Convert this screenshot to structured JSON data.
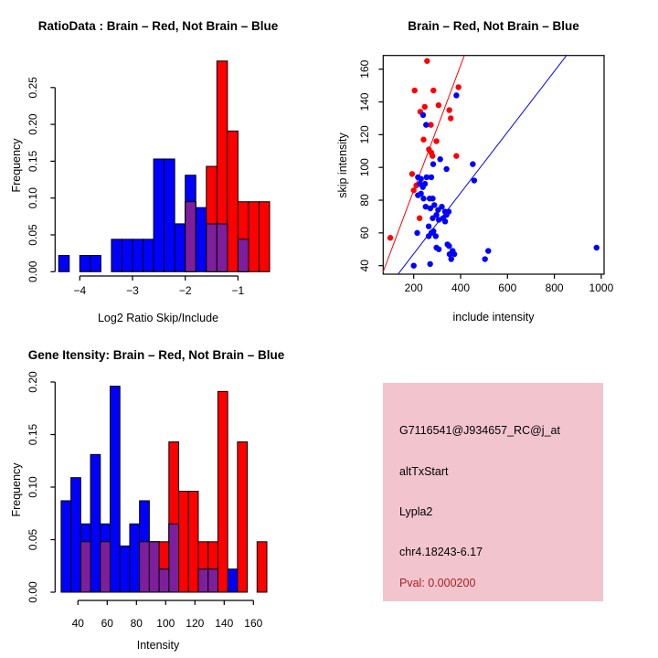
{
  "window": {
    "title": "R Graphics: 2x2 alternative splicing diagnostic plots"
  },
  "colors": {
    "background": "#ffffff",
    "red": "#ff0000",
    "blue": "#0000ff",
    "overlap_purple": "#7d1e9c",
    "axis_black": "#000000",
    "info_panel_pink": "#f2c5ce",
    "pval_red": "#aa2222"
  },
  "panels": {
    "ratio_hist": {
      "title": "RatioData : Brain – Red, Not Brain – Blue",
      "xlabel": "Log2 Ratio Skip/Include",
      "ylabel": "Frequency"
    },
    "scatter": {
      "title": "Brain – Red, Not Brain – Blue",
      "xlabel": "include intensity",
      "ylabel": "skip intensity"
    },
    "gene_hist": {
      "title": "Gene Itensity: Brain – Red, Not Brain – Blue",
      "xlabel": "Intensity",
      "ylabel": "Frequency"
    },
    "info": {
      "lines": [
        {
          "text": "G7116541@J934657_RC@j_at",
          "color": "#000000"
        },
        {
          "text": "altTxStart",
          "color": "#000000"
        },
        {
          "text": "Lypla2",
          "color": "#000000"
        },
        {
          "text": "chr4.18243-6.17",
          "color": "#000000"
        },
        {
          "text": "Pval: 0.000200",
          "color": "#aa2222"
        }
      ]
    }
  },
  "chart_data": [
    {
      "id": "ratio-histogram",
      "type": "bar",
      "title": "RatioData : Brain – Red, Not Brain – Blue",
      "xlabel": "Log2 Ratio Skip/Include",
      "ylabel": "Frequency",
      "bin_start": -4.4,
      "bin_width": 0.2,
      "xlim": [
        -4.45,
        -0.35
      ],
      "ylim": [
        0,
        0.29
      ],
      "xticks": [
        -4,
        -3,
        -2,
        -1
      ],
      "xtick_labels": [
        "−4",
        "−3",
        "−2",
        "−1"
      ],
      "yticks": [
        0,
        0.05,
        0.1,
        0.15,
        0.2,
        0.25
      ],
      "ytick_labels": [
        "0.00",
        "0.05",
        "0.10",
        "0.15",
        "0.20",
        "0.25"
      ],
      "grid": false,
      "series": [
        {
          "name": "Not Brain (blue)",
          "color": "blue",
          "values": [
            0.022,
            0,
            0.022,
            0.022,
            0,
            0.044,
            0.044,
            0.044,
            0.044,
            0.153,
            0.153,
            0.065,
            0.131,
            0.087,
            0.065,
            0.065,
            0,
            0.044,
            0,
            0
          ]
        },
        {
          "name": "Brain (red)",
          "color": "red",
          "values": [
            0,
            0,
            0,
            0,
            0,
            0,
            0,
            0,
            0,
            0,
            0,
            0,
            0.095,
            0,
            0.143,
            0.286,
            0.191,
            0.095,
            0.095,
            0.095
          ]
        }
      ]
    },
    {
      "id": "intensity-scatter",
      "type": "scatter",
      "title": "Brain – Red, Not Brain – Blue",
      "xlabel": "include intensity",
      "ylabel": "skip intensity",
      "xlim": [
        70,
        1012
      ],
      "ylim": [
        35,
        168
      ],
      "xticks": [
        200,
        400,
        600,
        800,
        1000
      ],
      "xtick_labels": [
        "200",
        "400",
        "600",
        "800",
        "1000"
      ],
      "yticks": [
        40,
        60,
        80,
        100,
        120,
        140,
        160
      ],
      "ytick_labels": [
        "40",
        "60",
        "80",
        "100",
        "120",
        "140",
        "160"
      ],
      "grid": false,
      "series": [
        {
          "name": "Brain (red)",
          "color": "red",
          "points": [
            [
              257,
              165
            ],
            [
              204,
              147
            ],
            [
              284,
              147
            ],
            [
              391,
              149
            ],
            [
              247,
              137
            ],
            [
              306,
              138
            ],
            [
              228,
              134
            ],
            [
              352,
              135
            ],
            [
              358,
              130
            ],
            [
              273,
              126
            ],
            [
              242,
              117
            ],
            [
              297,
              116
            ],
            [
              265,
              111
            ],
            [
              275,
              109
            ],
            [
              280,
              107
            ],
            [
              382,
              107
            ],
            [
              193,
              96
            ],
            [
              211,
              89
            ],
            [
              200,
              86
            ],
            [
              225,
              69
            ],
            [
              100,
              57
            ]
          ]
        },
        {
          "name": "Not Brain (blue)",
          "color": "blue",
          "points": [
            [
              382,
              144
            ],
            [
              240,
              132
            ],
            [
              253,
              126
            ],
            [
              313,
              105
            ],
            [
              283,
              102
            ],
            [
              340,
              99
            ],
            [
              452,
              102
            ],
            [
              458,
              92
            ],
            [
              218,
              94
            ],
            [
              231,
              93
            ],
            [
              255,
              94
            ],
            [
              275,
              94
            ],
            [
              226,
              90
            ],
            [
              239,
              88
            ],
            [
              248,
              90
            ],
            [
              231,
              84
            ],
            [
              218,
              83
            ],
            [
              242,
              81
            ],
            [
              268,
              81
            ],
            [
              281,
              81
            ],
            [
              251,
              76
            ],
            [
              271,
              75
            ],
            [
              288,
              77
            ],
            [
              304,
              74
            ],
            [
              320,
              76
            ],
            [
              334,
              73
            ],
            [
              349,
              73
            ],
            [
              340,
              71
            ],
            [
              281,
              69
            ],
            [
              297,
              71
            ],
            [
              307,
              68
            ],
            [
              325,
              69
            ],
            [
              334,
              67
            ],
            [
              264,
              64
            ],
            [
              215,
              60
            ],
            [
              275,
              60
            ],
            [
              284,
              61
            ],
            [
              294,
              58
            ],
            [
              264,
              58
            ],
            [
              297,
              51
            ],
            [
              307,
              50
            ],
            [
              344,
              53
            ],
            [
              351,
              52
            ],
            [
              353,
              47
            ],
            [
              366,
              49
            ],
            [
              373,
              47
            ],
            [
              360,
              44
            ],
            [
              518,
              49
            ],
            [
              504,
              44
            ],
            [
              270,
              41
            ],
            [
              200,
              40
            ],
            [
              980,
              51
            ]
          ]
        }
      ],
      "fit_lines": [
        {
          "name": "brain-fit",
          "color": "red",
          "from": [
            69,
            36
          ],
          "to": [
            415,
            168
          ]
        },
        {
          "name": "not-brain-fit",
          "color": "blue",
          "from": [
            134,
            35
          ],
          "to": [
            850,
            168
          ]
        }
      ]
    },
    {
      "id": "gene-intensity-histogram",
      "type": "bar",
      "title": "Gene Itensity: Brain – Red, Not Brain – Blue",
      "xlabel": "Intensity",
      "ylabel": "Frequency",
      "bin_start": 28.5,
      "bin_width": 6.7,
      "xlim": [
        27,
        170
      ],
      "ylim": [
        0,
        0.2
      ],
      "xticks": [
        40,
        60,
        80,
        100,
        120,
        140,
        160
      ],
      "xtick_labels": [
        "40",
        "60",
        "80",
        "100",
        "120",
        "140",
        "160"
      ],
      "yticks": [
        0,
        0.05,
        0.1,
        0.15,
        0.2
      ],
      "ytick_labels": [
        "0.00",
        "0.05",
        "0.10",
        "0.15",
        "0.20"
      ],
      "grid": false,
      "series": [
        {
          "name": "Not Brain (blue)",
          "color": "blue",
          "values": [
            0.087,
            0.109,
            0.065,
            0.131,
            0.065,
            0.196,
            0.044,
            0.065,
            0.087,
            0.048,
            0.022,
            0.065,
            0,
            0,
            0.022,
            0.022,
            0,
            0.022,
            0,
            0,
            0
          ]
        },
        {
          "name": "Brain (red)",
          "color": "red",
          "values": [
            0,
            0,
            0.048,
            0,
            0.048,
            0,
            0,
            0,
            0.048,
            0.048,
            0.048,
            0.143,
            0.096,
            0.096,
            0.048,
            0.048,
            0.191,
            0,
            0.143,
            0,
            0.048
          ]
        }
      ]
    }
  ]
}
